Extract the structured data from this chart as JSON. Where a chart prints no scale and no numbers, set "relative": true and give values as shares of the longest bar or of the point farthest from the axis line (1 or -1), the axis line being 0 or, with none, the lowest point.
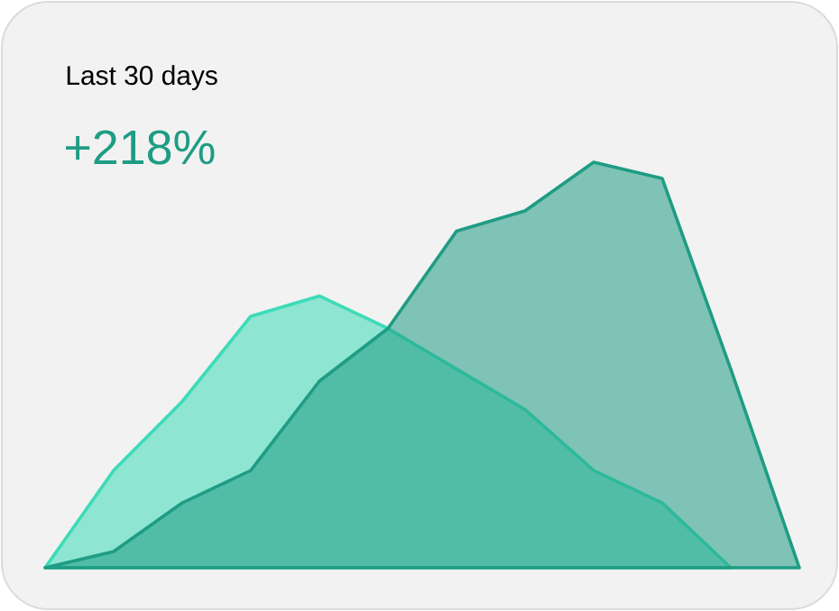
{
  "chart_data": {
    "type": "area",
    "title": "Last 30 days",
    "subtitle": "+218%",
    "relative": true,
    "categories": [
      null,
      null,
      null,
      null,
      null,
      null,
      null,
      null,
      null,
      null,
      null,
      null
    ],
    "series": [
      {
        "color": "#3ddbb8",
        "values": [
          0,
          0.24,
          0.41,
          0.62,
          0.67,
          0.59,
          0.49,
          0.39,
          0.24,
          0.16,
          0,
          null
        ]
      },
      {
        "color": "#1f9c84",
        "values": [
          0,
          0.04,
          0.16,
          0.24,
          0.46,
          0.59,
          0.83,
          0.88,
          1,
          0.96,
          0.49,
          0
        ]
      }
    ]
  }
}
